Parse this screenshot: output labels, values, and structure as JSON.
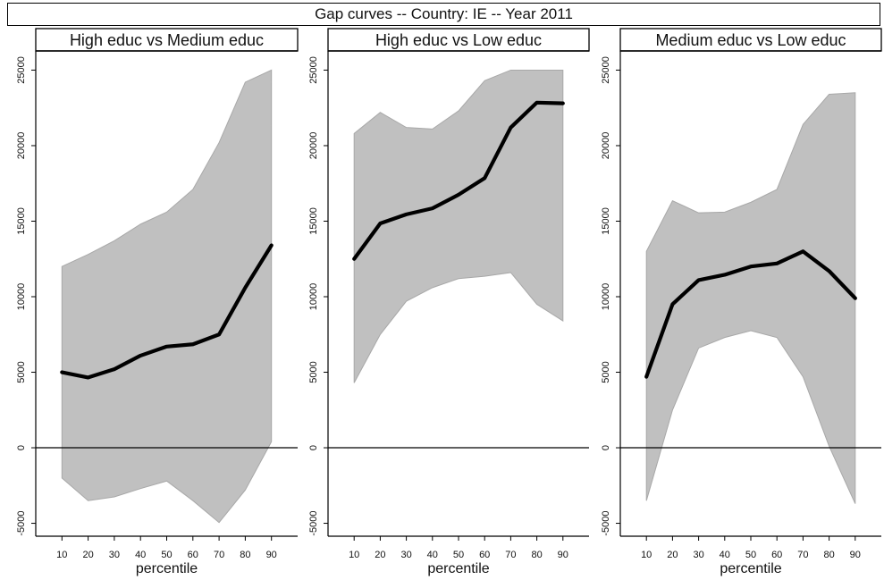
{
  "title": "Gap curves -- Country: IE -- Year 2011",
  "chart_data": {
    "type": "line",
    "title": "Gap curves -- Country: IE -- Year 2011",
    "xlabel": "percentile",
    "x": [
      10,
      20,
      30,
      40,
      50,
      60,
      70,
      80,
      90
    ],
    "x_ticks": [
      "10",
      "20",
      "30",
      "40",
      "50",
      "60",
      "70",
      "80",
      "90"
    ],
    "y_ticks": [
      "-5000",
      "0",
      "5000",
      "10000",
      "15000",
      "20000",
      "25000"
    ],
    "y_tick_values": [
      -5000,
      0,
      5000,
      10000,
      15000,
      20000,
      25000
    ],
    "ylim": [
      -5500,
      25500
    ],
    "xlim": [
      0,
      100
    ],
    "grid": false,
    "reference_line_y": 0,
    "line_color": "#000000",
    "band_color": "#c0c0c0",
    "band_edge_color": "#a8a8a8",
    "panels": [
      {
        "title": "High educ vs Medium educ",
        "gap": [
          5000,
          4650,
          5200,
          6100,
          6700,
          6850,
          7500,
          10600,
          13400
        ],
        "lower": [
          -2000,
          -3500,
          -3250,
          -2700,
          -2200,
          -3500,
          -4950,
          -2800,
          400
        ],
        "upper": [
          12000,
          12800,
          13700,
          14800,
          15600,
          17100,
          20200,
          24200,
          25000
        ]
      },
      {
        "title": "High educ vs Low educ",
        "gap": [
          12500,
          14850,
          15450,
          15850,
          16750,
          17850,
          21200,
          22850,
          22800
        ],
        "lower": [
          4300,
          7500,
          9700,
          10600,
          11200,
          11350,
          11600,
          9500,
          8400
        ],
        "upper": [
          20800,
          22200,
          21200,
          21100,
          22300,
          24300,
          25000,
          25000,
          25000
        ]
      },
      {
        "title": "Medium educ vs Low educ",
        "gap": [
          4700,
          9500,
          11100,
          11450,
          12000,
          12200,
          13000,
          11700,
          9900
        ],
        "lower": [
          -3500,
          2500,
          6600,
          7300,
          7750,
          7300,
          4700,
          100,
          -3700
        ],
        "upper": [
          13000,
          16350,
          15550,
          15600,
          16250,
          17100,
          21400,
          23400,
          23500
        ]
      }
    ]
  }
}
